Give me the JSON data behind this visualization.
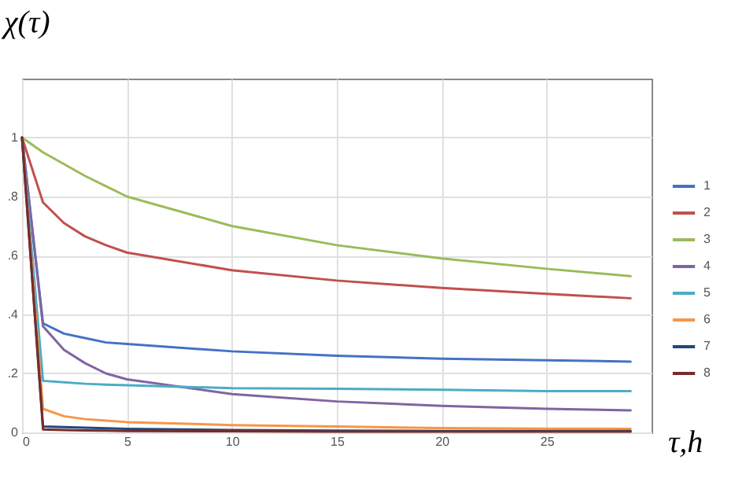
{
  "chart_data": {
    "type": "line",
    "xlabel": "τ,h",
    "ylabel": "χ(τ)",
    "x": [
      0,
      1,
      2,
      3,
      4,
      5,
      10,
      15,
      20,
      25,
      29
    ],
    "series": [
      {
        "name": "1",
        "color": "#4472c4",
        "values": [
          1,
          0.37,
          0.335,
          0.32,
          0.305,
          0.3,
          0.275,
          0.26,
          0.25,
          0.245,
          0.24
        ]
      },
      {
        "name": "2",
        "color": "#c0504d",
        "values": [
          1,
          0.78,
          0.71,
          0.665,
          0.635,
          0.61,
          0.55,
          0.515,
          0.49,
          0.47,
          0.455
        ]
      },
      {
        "name": "3",
        "color": "#9bbb59",
        "values": [
          1,
          0.95,
          0.91,
          0.87,
          0.835,
          0.8,
          0.7,
          0.635,
          0.59,
          0.555,
          0.53
        ]
      },
      {
        "name": "4",
        "color": "#8064a2",
        "values": [
          1,
          0.36,
          0.28,
          0.235,
          0.2,
          0.18,
          0.13,
          0.105,
          0.09,
          0.08,
          0.075
        ]
      },
      {
        "name": "5",
        "color": "#4bacc6",
        "values": [
          1,
          0.175,
          0.17,
          0.165,
          0.162,
          0.16,
          0.15,
          0.148,
          0.145,
          0.14,
          0.14
        ]
      },
      {
        "name": "6",
        "color": "#f79646",
        "values": [
          1,
          0.08,
          0.055,
          0.045,
          0.04,
          0.035,
          0.025,
          0.02,
          0.015,
          0.013,
          0.012
        ]
      },
      {
        "name": "7",
        "color": "#1f497d",
        "values": [
          1,
          0.02,
          0.018,
          0.016,
          0.014,
          0.012,
          0.008,
          0.006,
          0.005,
          0.005,
          0.005
        ]
      },
      {
        "name": "8",
        "color": "#772c2a",
        "values": [
          1,
          0.01,
          0.008,
          0.007,
          0.006,
          0.005,
          0.004,
          0.003,
          0.003,
          0.003,
          0.003
        ]
      }
    ],
    "xlim": [
      0,
      30
    ],
    "xticks": [
      0,
      5,
      10,
      15,
      20,
      25
    ],
    "ylim": [
      0,
      1.2
    ],
    "yticks": [
      0,
      {
        "value": 0.2,
        "label": ".2"
      },
      {
        "value": 0.4,
        "label": ".4"
      },
      {
        "value": 0.6,
        "label": ".6"
      },
      {
        "value": 0.8,
        "label": ".8"
      },
      1
    ],
    "grid": true,
    "legend": "right",
    "marker": "none",
    "line_style": "solid"
  }
}
